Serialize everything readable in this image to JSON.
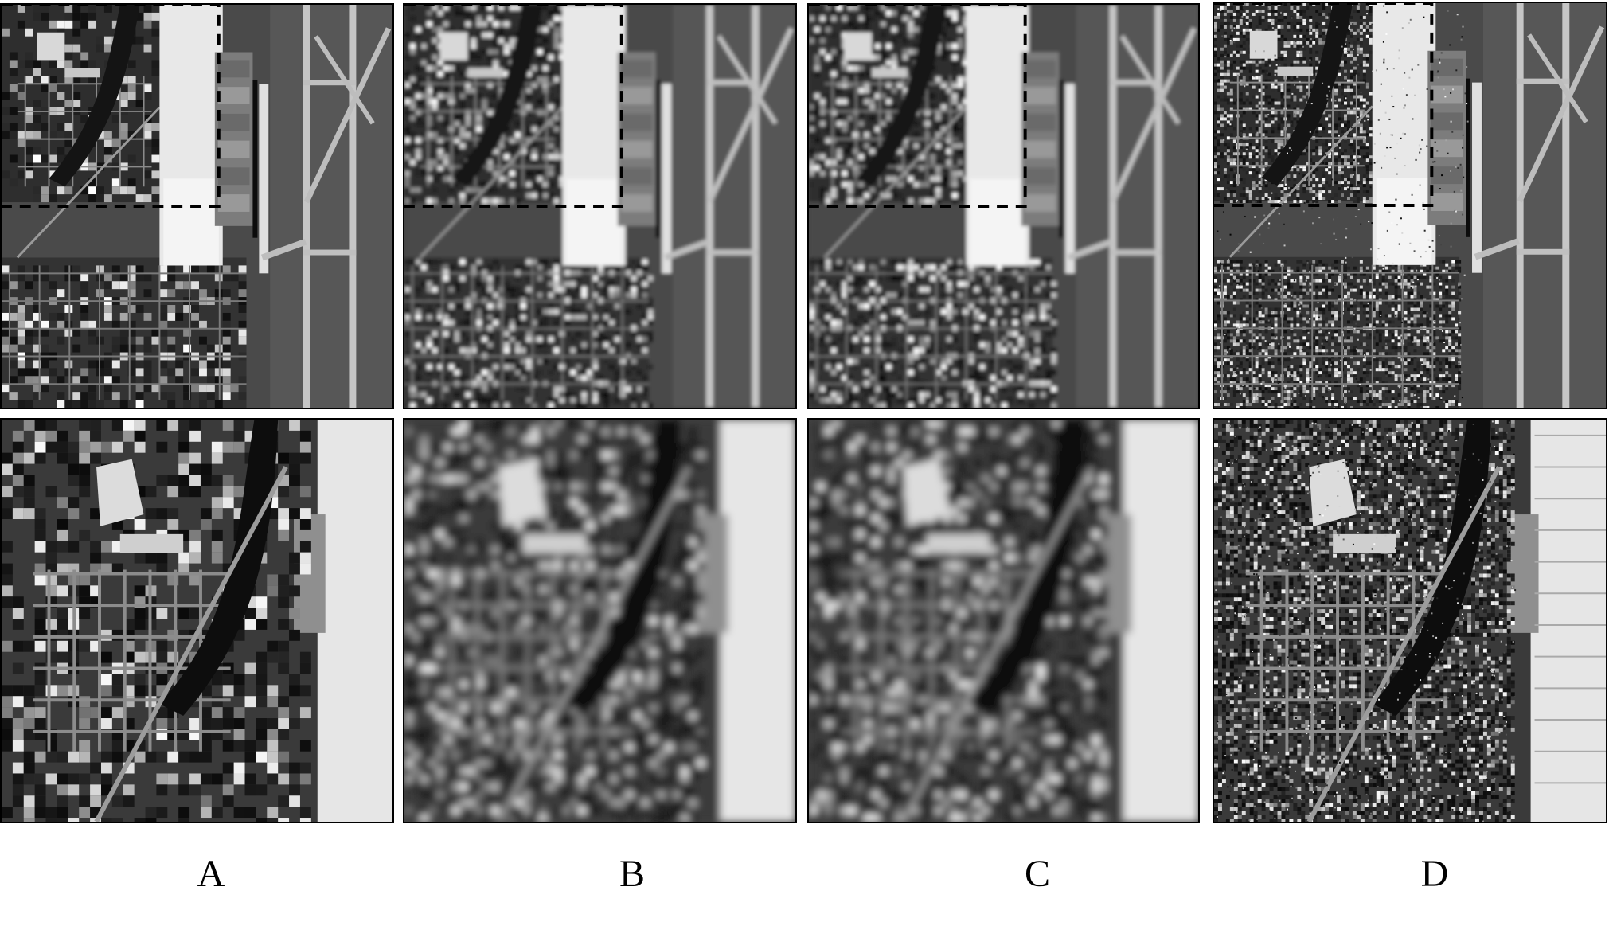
{
  "labels": {
    "a": "A",
    "b": "B",
    "c": "C",
    "d": "D"
  },
  "panels": [
    {
      "column": "A",
      "row": "top",
      "content": "full-scene",
      "quality": "pixelated"
    },
    {
      "column": "B",
      "row": "top",
      "content": "full-scene",
      "quality": "smooth"
    },
    {
      "column": "C",
      "row": "top",
      "content": "full-scene",
      "quality": "smooth"
    },
    {
      "column": "D",
      "row": "top",
      "content": "full-scene",
      "quality": "sharp"
    },
    {
      "column": "A",
      "row": "bottom",
      "content": "zoomed-region",
      "quality": "pixelated"
    },
    {
      "column": "B",
      "row": "bottom",
      "content": "zoomed-region",
      "quality": "smooth"
    },
    {
      "column": "C",
      "row": "bottom",
      "content": "zoomed-region",
      "quality": "smooth"
    },
    {
      "column": "D",
      "row": "bottom",
      "content": "zoomed-region",
      "quality": "sharp"
    }
  ]
}
